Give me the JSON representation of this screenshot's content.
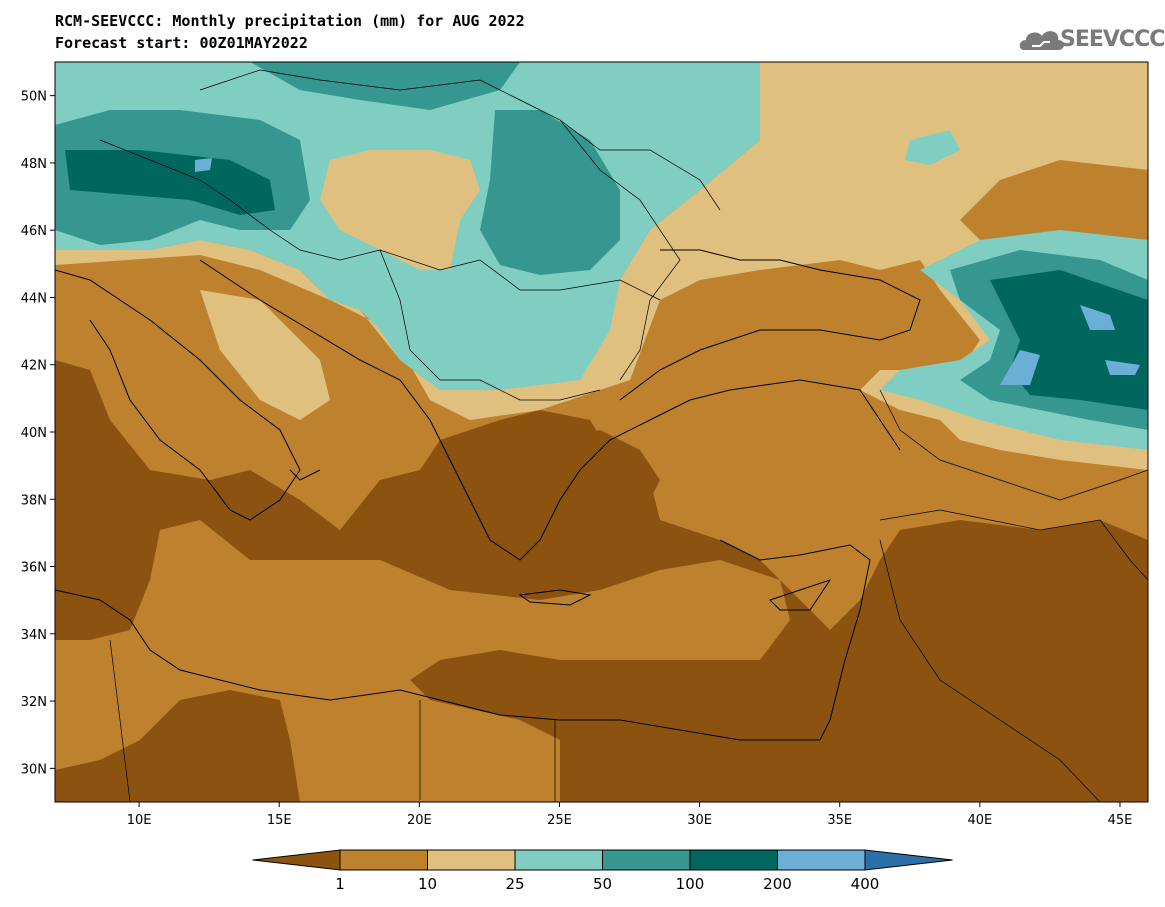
{
  "title": {
    "line1": "RCM-SEEVCCC: Monthly precipitation (mm) for AUG 2022",
    "line2": "Forecast start: 00Z01MAY2022"
  },
  "logo": {
    "text": "SEEVCCC"
  },
  "map": {
    "lon_range": [
      7,
      46
    ],
    "lat_range": [
      29,
      51
    ],
    "lat_ticks": [
      {
        "value": 50,
        "label": "50N"
      },
      {
        "value": 48,
        "label": "48N"
      },
      {
        "value": 46,
        "label": "46N"
      },
      {
        "value": 44,
        "label": "44N"
      },
      {
        "value": 42,
        "label": "42N"
      },
      {
        "value": 40,
        "label": "40N"
      },
      {
        "value": 38,
        "label": "38N"
      },
      {
        "value": 36,
        "label": "36N"
      },
      {
        "value": 34,
        "label": "34N"
      },
      {
        "value": 32,
        "label": "32N"
      },
      {
        "value": 30,
        "label": "30N"
      }
    ],
    "lon_ticks": [
      {
        "value": 10,
        "label": "10E"
      },
      {
        "value": 15,
        "label": "15E"
      },
      {
        "value": 20,
        "label": "20E"
      },
      {
        "value": 25,
        "label": "25E"
      },
      {
        "value": 30,
        "label": "30E"
      },
      {
        "value": 35,
        "label": "35E"
      },
      {
        "value": 40,
        "label": "40E"
      },
      {
        "value": 45,
        "label": "45E"
      }
    ]
  },
  "colorbar": {
    "unit": "mm",
    "colors": [
      "#8c5210",
      "#be822f",
      "#dfc07f",
      "#80cdc1",
      "#35978f",
      "#01665e",
      "#6baed6",
      "#2c6fa8"
    ],
    "labels": [
      "1",
      "10",
      "25",
      "50",
      "100",
      "200",
      "400"
    ]
  }
}
